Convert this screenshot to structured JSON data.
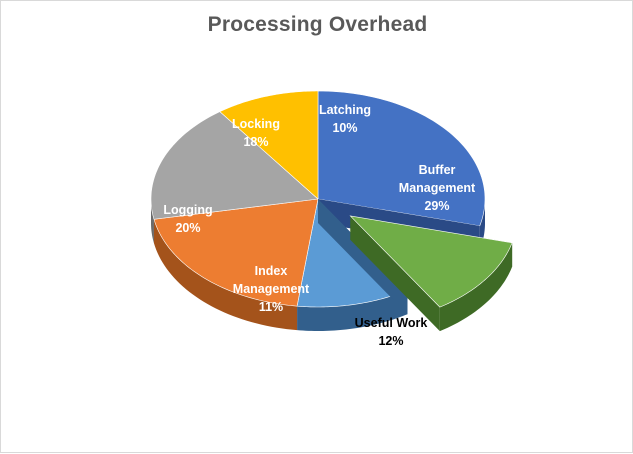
{
  "chart_data": {
    "type": "pie",
    "title": "Processing Overhead",
    "slices": [
      {
        "label": "Buffer Management",
        "label_lines": [
          "Buffer",
          "Management"
        ],
        "value": 29,
        "percent_text": "29%",
        "color": "#4472C4",
        "side": "#2A4A86",
        "label_color": "#ffffff"
      },
      {
        "label": "Useful Work",
        "label_lines": [
          "Useful Work"
        ],
        "value": 12,
        "percent_text": "12%",
        "color": "#70AD47",
        "side": "#3E6A25",
        "label_color": "#000000",
        "exploded": true
      },
      {
        "label": "Index Management",
        "label_lines": [
          "Index",
          "Management"
        ],
        "value": 11,
        "percent_text": "11%",
        "color": "#5B9BD5",
        "side": "#325F8C",
        "label_color": "#ffffff"
      },
      {
        "label": "Logging",
        "label_lines": [
          "Logging"
        ],
        "value": 20,
        "percent_text": "20%",
        "color": "#ED7D31",
        "side": "#A4531B",
        "label_color": "#ffffff"
      },
      {
        "label": "Locking",
        "label_lines": [
          "Locking"
        ],
        "value": 18,
        "percent_text": "18%",
        "color": "#A5A5A5",
        "side": "#6B6B6B",
        "label_color": "#ffffff"
      },
      {
        "label": "Latching",
        "label_lines": [
          "Latching"
        ],
        "value": 10,
        "percent_text": "10%",
        "color": "#FFC000",
        "side": "#B38600",
        "label_color": "#ffffff"
      }
    ]
  }
}
